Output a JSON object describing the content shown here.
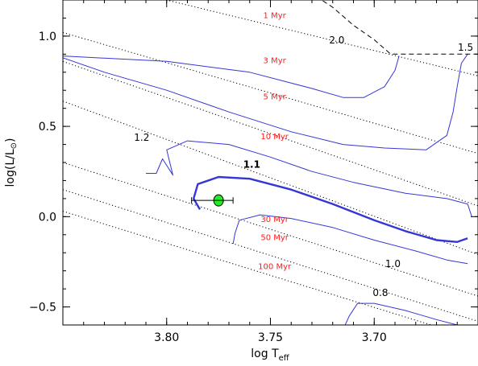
{
  "chart_data": {
    "type": "line",
    "xlabel": "log T",
    "xlabel_sub": "eff",
    "ylabel": "log(L/L",
    "ylabel_sun": "⊙",
    "ylabel_close": ")",
    "xlim": [
      3.85,
      3.65
    ],
    "ylim": [
      -0.6,
      1.2
    ],
    "x_inverted": true,
    "grid": false,
    "x_ticks": [
      {
        "value": 3.8,
        "label": "3.80"
      },
      {
        "value": 3.75,
        "label": "3.75"
      },
      {
        "value": 3.7,
        "label": "3.70"
      }
    ],
    "y_ticks": [
      {
        "value": -0.5,
        "label": "−0.5"
      },
      {
        "value": 0.0,
        "label": "0.0"
      },
      {
        "value": 0.5,
        "label": "0.5"
      },
      {
        "value": 1.0,
        "label": "1.0"
      }
    ],
    "x_minor_step": 0.01,
    "y_minor_step": 0.1,
    "isochrones": [
      {
        "label": "1 Myr",
        "label_at": [
          3.748,
          1.1
        ],
        "points": [
          [
            3.85,
            1.34
          ],
          [
            3.65,
            0.78
          ]
        ]
      },
      {
        "label": "3 Myr",
        "label_at": [
          3.748,
          0.85
        ],
        "points": [
          [
            3.85,
            1.02
          ],
          [
            3.65,
            0.35
          ]
        ]
      },
      {
        "label": "5 Myr",
        "label_at": [
          3.748,
          0.65
        ],
        "points": [
          [
            3.85,
            0.86
          ],
          [
            3.65,
            0.06
          ]
        ]
      },
      {
        "label": "10 Myr",
        "label_at": [
          3.748,
          0.43
        ],
        "points": [
          [
            3.85,
            0.64
          ],
          [
            3.65,
            -0.21
          ]
        ]
      },
      {
        "label": "30 Myr",
        "label_at": [
          3.748,
          -0.03
        ],
        "points": [
          [
            3.85,
            0.3
          ],
          [
            3.65,
            -0.44
          ]
        ]
      },
      {
        "label": "50 Myr",
        "label_at": [
          3.748,
          -0.13
        ],
        "points": [
          [
            3.85,
            0.15
          ],
          [
            3.65,
            -0.58
          ]
        ]
      },
      {
        "label": "100 Myr",
        "label_at": [
          3.748,
          -0.29
        ],
        "points": [
          [
            3.85,
            0.03
          ],
          [
            3.65,
            -0.68
          ]
        ]
      }
    ],
    "tracks": [
      {
        "label": "2.0",
        "label_at": [
          3.718,
          0.96
        ],
        "style": "solid",
        "points": [
          [
            3.85,
            0.89
          ],
          [
            3.8,
            0.86
          ],
          [
            3.76,
            0.8
          ],
          [
            3.73,
            0.71
          ],
          [
            3.715,
            0.66
          ],
          [
            3.705,
            0.66
          ],
          [
            3.695,
            0.72
          ],
          [
            3.69,
            0.81
          ],
          [
            3.688,
            0.89
          ]
        ]
      },
      {
        "label": "1.5",
        "label_at": [
          3.656,
          0.92
        ],
        "style": "solid",
        "points": [
          [
            3.85,
            0.88
          ],
          [
            3.83,
            0.8
          ],
          [
            3.8,
            0.7
          ],
          [
            3.77,
            0.58
          ],
          [
            3.74,
            0.47
          ],
          [
            3.715,
            0.4
          ],
          [
            3.695,
            0.38
          ],
          [
            3.675,
            0.37
          ],
          [
            3.665,
            0.45
          ],
          [
            3.662,
            0.58
          ],
          [
            3.66,
            0.72
          ],
          [
            3.658,
            0.85
          ],
          [
            3.655,
            0.9
          ]
        ]
      },
      {
        "label": "1.2",
        "label_at": [
          3.812,
          0.42
        ],
        "style": "solid",
        "points": [
          [
            3.81,
            0.24
          ],
          [
            3.805,
            0.24
          ],
          [
            3.802,
            0.32
          ],
          [
            3.797,
            0.23
          ],
          [
            3.8,
            0.37
          ],
          [
            3.79,
            0.42
          ],
          [
            3.77,
            0.4
          ],
          [
            3.75,
            0.33
          ],
          [
            3.73,
            0.25
          ],
          [
            3.71,
            0.19
          ],
          [
            3.685,
            0.13
          ],
          [
            3.665,
            0.1
          ],
          [
            3.655,
            0.07
          ],
          [
            3.653,
            0.0
          ]
        ]
      },
      {
        "label": "1.1",
        "label_at": [
          3.759,
          0.27
        ],
        "style": "solid-bold",
        "points": [
          [
            3.784,
            0.04
          ],
          [
            3.787,
            0.1
          ],
          [
            3.785,
            0.18
          ],
          [
            3.775,
            0.22
          ],
          [
            3.76,
            0.21
          ],
          [
            3.74,
            0.15
          ],
          [
            3.72,
            0.07
          ],
          [
            3.7,
            -0.02
          ],
          [
            3.685,
            -0.08
          ],
          [
            3.67,
            -0.13
          ],
          [
            3.66,
            -0.14
          ],
          [
            3.655,
            -0.12
          ]
        ]
      },
      {
        "label": "1.0",
        "label_at": [
          3.691,
          -0.28
        ],
        "style": "solid",
        "points": [
          [
            3.768,
            -0.15
          ],
          [
            3.767,
            -0.09
          ],
          [
            3.765,
            -0.02
          ],
          [
            3.755,
            0.01
          ],
          [
            3.74,
            -0.01
          ],
          [
            3.72,
            -0.06
          ],
          [
            3.7,
            -0.13
          ],
          [
            3.68,
            -0.19
          ],
          [
            3.665,
            -0.24
          ],
          [
            3.655,
            -0.26
          ]
        ]
      },
      {
        "label": "0.8",
        "label_at": [
          3.697,
          -0.44
        ],
        "style": "solid",
        "points": [
          [
            3.714,
            -0.6
          ],
          [
            3.712,
            -0.55
          ],
          [
            3.708,
            -0.48
          ],
          [
            3.7,
            -0.48
          ],
          [
            3.685,
            -0.52
          ],
          [
            3.67,
            -0.57
          ],
          [
            3.66,
            -0.6
          ]
        ]
      },
      {
        "label": "",
        "label_at": null,
        "style": "dashed",
        "points": [
          [
            3.728,
            1.22
          ],
          [
            3.72,
            1.16
          ],
          [
            3.71,
            1.06
          ],
          [
            3.7,
            0.98
          ],
          [
            3.692,
            0.9
          ],
          [
            3.675,
            0.9
          ],
          [
            3.65,
            0.9
          ]
        ]
      }
    ],
    "observation": {
      "x": 3.775,
      "y": 0.09,
      "x_error": [
        3.788,
        3.768
      ],
      "y_error": [
        0.07,
        0.11
      ],
      "marker_color": "#22ee22",
      "edge_color": "#000000"
    },
    "colors": {
      "track": "#3636d6",
      "isochrone": "#000000",
      "isochrone_label": "#ff1a1a",
      "axis": "#000000"
    }
  }
}
